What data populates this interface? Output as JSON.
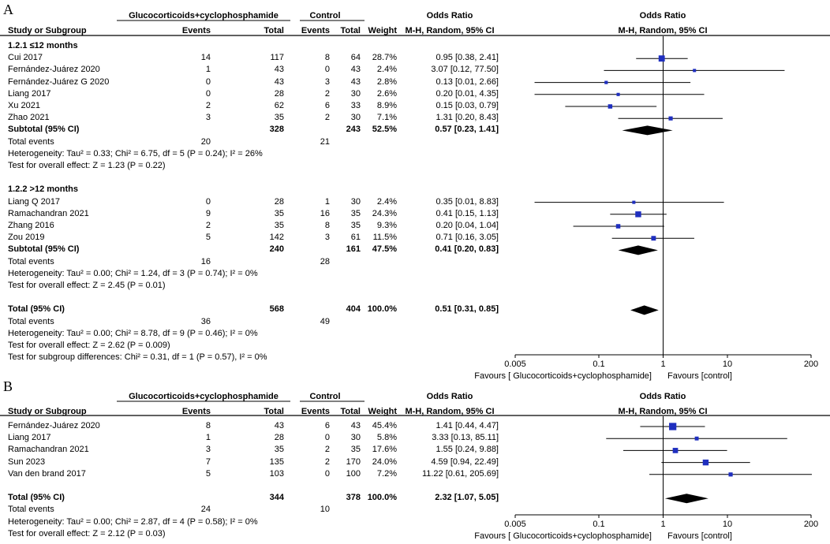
{
  "panels": [
    {
      "letter": "A",
      "headers": {
        "exp_group": "Glucocorticoids+cyclophosphamide",
        "ctl_group": "Control",
        "or_text_1": "Odds Ratio",
        "or_text_2": "M-H, Random, 95% CI",
        "or_plot_1": "Odds Ratio",
        "or_plot_2": "M-H, Random, 95% CI",
        "study": "Study or Subgroup",
        "events": "Events",
        "total": "Total",
        "events2": "Events",
        "total2": "Total",
        "weight": "Weight"
      },
      "rows": [
        {
          "kind": "group",
          "label": "1.2.1 ≤12 months"
        },
        {
          "kind": "study",
          "study": "Cui 2017",
          "e1": "14",
          "n1": "117",
          "e2": "8",
          "n2": "64",
          "w": "28.7%",
          "ci": "0.95 [0.38, 2.41]",
          "or": 0.95,
          "lo": 0.38,
          "hi": 2.41,
          "wt": 28.7
        },
        {
          "kind": "study",
          "study": "Fernández-Juárez 2020",
          "e1": "1",
          "n1": "43",
          "e2": "0",
          "n2": "43",
          "w": "2.4%",
          "ci": "3.07 [0.12, 77.50]",
          "or": 3.07,
          "lo": 0.12,
          "hi": 77.5,
          "wt": 2.4
        },
        {
          "kind": "study",
          "study": "Fernández-Juárez G 2020",
          "e1": "0",
          "n1": "43",
          "e2": "3",
          "n2": "43",
          "w": "2.8%",
          "ci": "0.13 [0.01, 2.66]",
          "or": 0.13,
          "lo": 0.01,
          "hi": 2.66,
          "wt": 2.8
        },
        {
          "kind": "study",
          "study": "Liang 2017",
          "e1": "0",
          "n1": "28",
          "e2": "2",
          "n2": "30",
          "w": "2.6%",
          "ci": "0.20 [0.01, 4.35]",
          "or": 0.2,
          "lo": 0.01,
          "hi": 4.35,
          "wt": 2.6
        },
        {
          "kind": "study",
          "study": "Xu 2021",
          "e1": "2",
          "n1": "62",
          "e2": "6",
          "n2": "33",
          "w": "8.9%",
          "ci": "0.15 [0.03, 0.79]",
          "or": 0.15,
          "lo": 0.03,
          "hi": 0.79,
          "wt": 8.9
        },
        {
          "kind": "study",
          "study": "Zhao 2021",
          "e1": "3",
          "n1": "35",
          "e2": "2",
          "n2": "30",
          "w": "7.1%",
          "ci": "1.31 [0.20, 8.43]",
          "or": 1.31,
          "lo": 0.2,
          "hi": 8.43,
          "wt": 7.1
        },
        {
          "kind": "subtotal",
          "study": "Subtotal (95% CI)",
          "n1": "328",
          "n2": "243",
          "w": "52.5%",
          "ci": "0.57 [0.23, 1.41]",
          "or": 0.57,
          "lo": 0.23,
          "hi": 1.41
        },
        {
          "kind": "events",
          "study": "Total events",
          "e1": "20",
          "e2": "21"
        },
        {
          "kind": "note",
          "study": "Heterogeneity: Tau² = 0.33; Chi² = 6.75, df = 5 (P = 0.24); I² = 26%"
        },
        {
          "kind": "note",
          "study": "Test for overall effect: Z = 1.23 (P = 0.22)"
        },
        {
          "kind": "blank"
        },
        {
          "kind": "group",
          "label": "1.2.2 >12 months"
        },
        {
          "kind": "study",
          "study": "Liang Q 2017",
          "e1": "0",
          "n1": "28",
          "e2": "1",
          "n2": "30",
          "w": "2.4%",
          "ci": "0.35 [0.01, 8.83]",
          "or": 0.35,
          "lo": 0.01,
          "hi": 8.83,
          "wt": 2.4
        },
        {
          "kind": "study",
          "study": "Ramachandran 2021",
          "e1": "9",
          "n1": "35",
          "e2": "16",
          "n2": "35",
          "w": "24.3%",
          "ci": "0.41 [0.15, 1.13]",
          "or": 0.41,
          "lo": 0.15,
          "hi": 1.13,
          "wt": 24.3
        },
        {
          "kind": "study",
          "study": "Zhang 2016",
          "e1": "2",
          "n1": "35",
          "e2": "8",
          "n2": "35",
          "w": "9.3%",
          "ci": "0.20 [0.04, 1.04]",
          "or": 0.2,
          "lo": 0.04,
          "hi": 1.04,
          "wt": 9.3
        },
        {
          "kind": "study",
          "study": "Zou 2019",
          "e1": "5",
          "n1": "142",
          "e2": "3",
          "n2": "61",
          "w": "11.5%",
          "ci": "0.71 [0.16, 3.05]",
          "or": 0.71,
          "lo": 0.16,
          "hi": 3.05,
          "wt": 11.5
        },
        {
          "kind": "subtotal",
          "study": "Subtotal (95% CI)",
          "n1": "240",
          "n2": "161",
          "w": "47.5%",
          "ci": "0.41 [0.20, 0.83]",
          "or": 0.41,
          "lo": 0.2,
          "hi": 0.83
        },
        {
          "kind": "events",
          "study": "Total events",
          "e1": "16",
          "e2": "28"
        },
        {
          "kind": "note",
          "study": "Heterogeneity: Tau² = 0.00; Chi² = 1.24, df = 3 (P = 0.74); I² = 0%"
        },
        {
          "kind": "note",
          "study": "Test for overall effect: Z = 2.45 (P = 0.01)"
        },
        {
          "kind": "blank"
        },
        {
          "kind": "subtotal",
          "study": "Total (95% CI)",
          "n1": "568",
          "n2": "404",
          "w": "100.0%",
          "ci": "0.51 [0.31, 0.85]",
          "or": 0.51,
          "lo": 0.31,
          "hi": 0.85
        },
        {
          "kind": "events",
          "study": "Total events",
          "e1": "36",
          "e2": "49"
        },
        {
          "kind": "note",
          "study": "Heterogeneity: Tau² = 0.00; Chi² = 8.78, df = 9 (P = 0.46); I² = 0%"
        },
        {
          "kind": "note",
          "study": "Test for overall effect: Z = 2.62 (P = 0.009)"
        },
        {
          "kind": "note",
          "study": "Test for subgroup differences: Chi² = 0.31, df = 1 (P = 0.57), I² = 0%"
        }
      ],
      "axis": {
        "ticks": [
          0.005,
          0.1,
          1,
          10,
          200
        ],
        "tick_labels": [
          "0.005",
          "0.1",
          "1",
          "10",
          "200"
        ],
        "favours_left": "Favours [ Glucocorticoids+cyclophosphamide]",
        "favours_right": "Favours [control]"
      }
    },
    {
      "letter": "B",
      "headers": {
        "exp_group": "Glucocorticoids+cyclophosphamide",
        "ctl_group": "Control",
        "or_text_1": "Odds Ratio",
        "or_text_2": "M-H, Random, 95% CI",
        "or_plot_1": "Odds Ratio",
        "or_plot_2": "M-H, Random, 95% CI",
        "study": "Study or Subgroup",
        "events": "Events",
        "total": "Total",
        "events2": "Events",
        "total2": "Total",
        "weight": "Weight"
      },
      "rows": [
        {
          "kind": "study",
          "study": "Fernández-Juárez 2020",
          "e1": "8",
          "n1": "43",
          "e2": "6",
          "n2": "43",
          "w": "45.4%",
          "ci": "1.41 [0.44, 4.47]",
          "or": 1.41,
          "lo": 0.44,
          "hi": 4.47,
          "wt": 45.4
        },
        {
          "kind": "study",
          "study": "Liang 2017",
          "e1": "1",
          "n1": "28",
          "e2": "0",
          "n2": "30",
          "w": "5.8%",
          "ci": "3.33 [0.13, 85.11]",
          "or": 3.33,
          "lo": 0.13,
          "hi": 85.11,
          "wt": 5.8
        },
        {
          "kind": "study",
          "study": "Ramachandran 2021",
          "e1": "3",
          "n1": "35",
          "e2": "2",
          "n2": "35",
          "w": "17.6%",
          "ci": "1.55 [0.24, 9.88]",
          "or": 1.55,
          "lo": 0.24,
          "hi": 9.88,
          "wt": 17.6
        },
        {
          "kind": "study",
          "study": "Sun 2023",
          "e1": "7",
          "n1": "135",
          "e2": "2",
          "n2": "170",
          "w": "24.0%",
          "ci": "4.59 [0.94, 22.49]",
          "or": 4.59,
          "lo": 0.94,
          "hi": 22.49,
          "wt": 24.0
        },
        {
          "kind": "study",
          "study": "Van den brand 2017",
          "e1": "5",
          "n1": "103",
          "e2": "0",
          "n2": "100",
          "w": "7.2%",
          "ci": "11.22 [0.61, 205.69]",
          "or": 11.22,
          "lo": 0.61,
          "hi": 205.69,
          "wt": 7.2
        },
        {
          "kind": "blank"
        },
        {
          "kind": "subtotal",
          "study": "Total (95% CI)",
          "n1": "344",
          "n2": "378",
          "w": "100.0%",
          "ci": "2.32 [1.07, 5.05]",
          "or": 2.32,
          "lo": 1.07,
          "hi": 5.05
        },
        {
          "kind": "events",
          "study": "Total events",
          "e1": "24",
          "e2": "10"
        },
        {
          "kind": "note",
          "study": "Heterogeneity: Tau² = 0.00; Chi² = 2.87, df = 4 (P = 0.58); I² = 0%"
        },
        {
          "kind": "note",
          "study": "Test for overall effect: Z = 2.12 (P = 0.03)"
        }
      ],
      "axis": {
        "ticks": [
          0.005,
          0.1,
          1,
          10,
          200
        ],
        "tick_labels": [
          "0.005",
          "0.1",
          "1",
          "10",
          "200"
        ],
        "favours_left": "Favours [ Glucocorticoids+cyclophosphamide]",
        "favours_right": "Favours [control]"
      }
    }
  ],
  "chart_data": [
    {
      "type": "forest",
      "title": "A",
      "xscale": "log",
      "xlim": [
        0.005,
        200
      ],
      "series": [
        {
          "name": "1.2.1 ≤12 months",
          "studies": [
            "Cui 2017",
            "Fernández-Juárez 2020",
            "Fernández-Juárez G 2020",
            "Liang 2017",
            "Xu 2021",
            "Zhao 2021"
          ],
          "or": [
            0.95,
            3.07,
            0.13,
            0.2,
            0.15,
            1.31
          ],
          "ci_low": [
            0.38,
            0.12,
            0.01,
            0.01,
            0.03,
            0.2
          ],
          "ci_high": [
            2.41,
            77.5,
            2.66,
            4.35,
            0.79,
            8.43
          ],
          "weight": [
            28.7,
            2.4,
            2.8,
            2.6,
            8.9,
            7.1
          ],
          "subtotal": [
            0.57,
            0.23,
            1.41
          ]
        },
        {
          "name": "1.2.2 >12 months",
          "studies": [
            "Liang Q 2017",
            "Ramachandran 2021",
            "Zhang 2016",
            "Zou 2019"
          ],
          "or": [
            0.35,
            0.41,
            0.2,
            0.71
          ],
          "ci_low": [
            0.01,
            0.15,
            0.04,
            0.16
          ],
          "ci_high": [
            8.83,
            1.13,
            1.04,
            3.05
          ],
          "weight": [
            2.4,
            24.3,
            9.3,
            11.5
          ],
          "subtotal": [
            0.41,
            0.2,
            0.83
          ]
        }
      ],
      "overall": [
        0.51,
        0.31,
        0.85
      ]
    },
    {
      "type": "forest",
      "title": "B",
      "xscale": "log",
      "xlim": [
        0.005,
        200
      ],
      "series": [
        {
          "name": "studies",
          "studies": [
            "Fernández-Juárez 2020",
            "Liang 2017",
            "Ramachandran 2021",
            "Sun 2023",
            "Van den brand 2017"
          ],
          "or": [
            1.41,
            3.33,
            1.55,
            4.59,
            11.22
          ],
          "ci_low": [
            0.44,
            0.13,
            0.24,
            0.94,
            0.61
          ],
          "ci_high": [
            4.47,
            85.11,
            9.88,
            22.49,
            205.69
          ],
          "weight": [
            45.4,
            5.8,
            17.6,
            24.0,
            7.2
          ]
        }
      ],
      "overall": [
        2.32,
        1.07,
        5.05
      ]
    }
  ],
  "colors": {
    "square": "#1f2fbf",
    "diamond": "#000000",
    "line": "#000000"
  }
}
